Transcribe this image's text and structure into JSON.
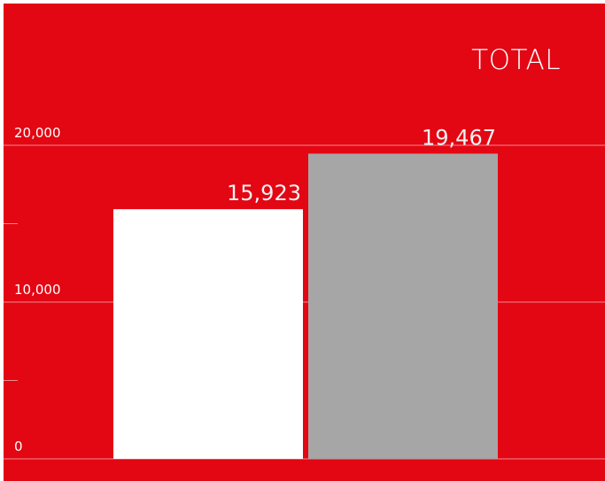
{
  "chart_data": {
    "type": "bar",
    "title": "TOTAL",
    "xlabel": "",
    "ylabel": "",
    "ylim": [
      0,
      20000
    ],
    "yticks": [
      0,
      10000,
      20000
    ],
    "ytick_labels": [
      "0",
      "10,000",
      "20,000"
    ],
    "grid": true,
    "series": [
      {
        "value": 15923,
        "label": "15,923",
        "color": "#ffffff"
      },
      {
        "value": 19467,
        "label": "19,467",
        "color": "#a6a6a6"
      }
    ]
  },
  "colors": {
    "background": "#e30613",
    "gridline": "#f08a90"
  }
}
